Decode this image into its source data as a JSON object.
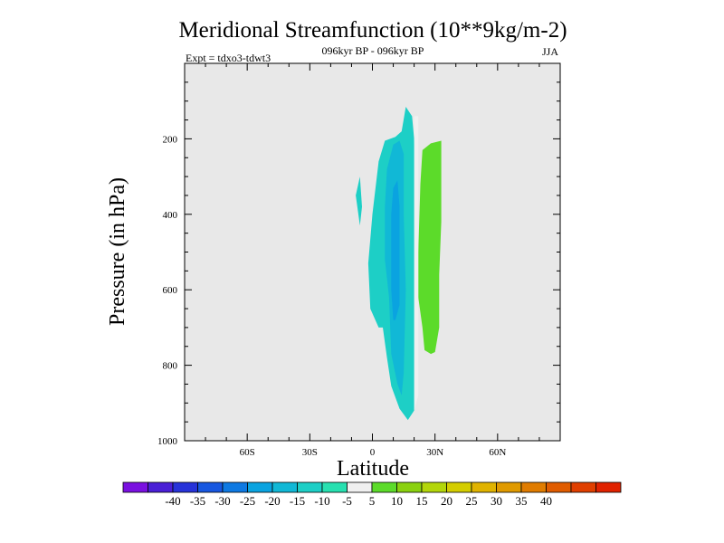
{
  "chart_data": {
    "type": "heatmap",
    "title": "Meridional Streamfunction (10**9kg/m-2)",
    "subtitle": "096kyr BP - 096kyr BP",
    "left_label": "Expt = tdxo3-tdwt3",
    "right_label": "JJA",
    "xlabel": "Latitude",
    "ylabel": "Pressure (in hPa)",
    "xlim": [
      -90,
      90
    ],
    "ylim": [
      1000,
      0
    ],
    "x_ticks": [
      {
        "value": -60,
        "label": "60S"
      },
      {
        "value": -30,
        "label": "30S"
      },
      {
        "value": 0,
        "label": "0"
      },
      {
        "value": 30,
        "label": "30N"
      },
      {
        "value": 60,
        "label": "60N"
      }
    ],
    "y_ticks": [
      {
        "value": 200,
        "label": "200"
      },
      {
        "value": 400,
        "label": "400"
      },
      {
        "value": 600,
        "label": "600"
      },
      {
        "value": 800,
        "label": "800"
      },
      {
        "value": 1000,
        "label": "1000"
      }
    ],
    "background_color": "#e8e8e8",
    "contours": [
      {
        "name": "negative-cell-outer",
        "level": -10,
        "color": "#1dcfc6",
        "points": [
          [
            -1,
            650
          ],
          [
            -2,
            530
          ],
          [
            0,
            400
          ],
          [
            3,
            260
          ],
          [
            6,
            205
          ],
          [
            11,
            195
          ],
          [
            14,
            180
          ],
          [
            16,
            115
          ],
          [
            19,
            140
          ],
          [
            20,
            200
          ],
          [
            21,
            300
          ],
          [
            21,
            400
          ],
          [
            21,
            500
          ],
          [
            21,
            600
          ],
          [
            21,
            700
          ],
          [
            21,
            820
          ],
          [
            21,
            880
          ],
          [
            20,
            920
          ],
          [
            17,
            945
          ],
          [
            13,
            915
          ],
          [
            9,
            855
          ],
          [
            7,
            780
          ],
          [
            5,
            700
          ],
          [
            3,
            700
          ]
        ]
      },
      {
        "name": "negative-cell-mid",
        "level": -15,
        "color": "#11b8d6",
        "points": [
          [
            6,
            520
          ],
          [
            6,
            380
          ],
          [
            7,
            280
          ],
          [
            10,
            215
          ],
          [
            13,
            205
          ],
          [
            15,
            240
          ],
          [
            15,
            400
          ],
          [
            16,
            600
          ],
          [
            15,
            820
          ],
          [
            14,
            880
          ],
          [
            12,
            850
          ],
          [
            9,
            770
          ],
          [
            8,
            620
          ]
        ]
      },
      {
        "name": "negative-cell-core",
        "level": -20,
        "color": "#0aa3e0",
        "points": [
          [
            9,
            600
          ],
          [
            9,
            400
          ],
          [
            10,
            330
          ],
          [
            12,
            310
          ],
          [
            13,
            380
          ],
          [
            13,
            500
          ],
          [
            13,
            640
          ],
          [
            11,
            680
          ],
          [
            10,
            680
          ]
        ]
      },
      {
        "name": "southern-small-cell",
        "level": -10,
        "color": "#1dcfc6",
        "points": [
          [
            -8,
            350
          ],
          [
            -6,
            300
          ],
          [
            -5,
            380
          ],
          [
            -6,
            430
          ]
        ]
      },
      {
        "name": "positive-cell",
        "level": 5,
        "color": "#5cdb2a",
        "points": [
          [
            22,
            500
          ],
          [
            23,
            320
          ],
          [
            24,
            230
          ],
          [
            28,
            212
          ],
          [
            33,
            205
          ],
          [
            33,
            300
          ],
          [
            33,
            420
          ],
          [
            32,
            560
          ],
          [
            32,
            700
          ],
          [
            30,
            765
          ],
          [
            28,
            770
          ],
          [
            25,
            760
          ],
          [
            24,
            700
          ],
          [
            22,
            620
          ]
        ]
      },
      {
        "name": "gap-divider",
        "level": -5,
        "color": "#f0f0f0",
        "points": [
          [
            20,
            140
          ],
          [
            22,
            140
          ],
          [
            22,
            880
          ],
          [
            20,
            920
          ]
        ]
      }
    ],
    "colorbar": {
      "colors": [
        "#7a10e0",
        "#4a1fd6",
        "#2733d9",
        "#1757e0",
        "#0e79e2",
        "#0aa3e0",
        "#11b8d6",
        "#1dcfc6",
        "#27e0b0",
        "#f0f0f0",
        "#5cdb2a",
        "#8ad10f",
        "#b3d60a",
        "#d4cd00",
        "#e0b300",
        "#e09a00",
        "#e07c00",
        "#e05c00",
        "#e03f00",
        "#e02200"
      ],
      "labels": [
        "-40",
        "-35",
        "-30",
        "-25",
        "-20",
        "-15",
        "-10",
        "-5",
        "5",
        "10",
        "15",
        "20",
        "25",
        "30",
        "35",
        "40"
      ],
      "label_boundaries": [
        2,
        3,
        4,
        5,
        6,
        7,
        8,
        9,
        10,
        11,
        12,
        13,
        14,
        15,
        16,
        17
      ]
    }
  }
}
